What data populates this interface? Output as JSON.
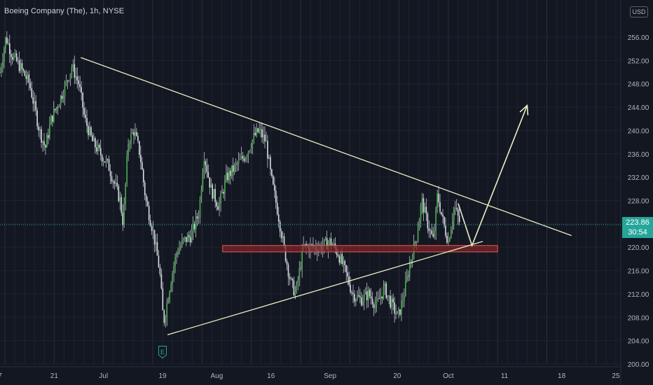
{
  "header": {
    "title": "Boeing Company (The), 1h, NYSE",
    "currency": "USD"
  },
  "current_price": {
    "value": "223.86",
    "countdown": "30:54",
    "y": 223.86
  },
  "earnings_marker": {
    "label": "E",
    "icon": "earnings-e-icon",
    "x": 16.5
  },
  "colors": {
    "background": "#131722",
    "candle_up": "#26a69a",
    "candle_body": "#4caf50",
    "candle_down": "#ef5350",
    "wick": "#d8dce3",
    "annotation": "#e9efc3",
    "zone_fill": "#7a2629",
    "zone_border": "#ef5350",
    "price_line": "#26a69a",
    "axis_text": "#b2b5be"
  },
  "chart_data": {
    "type": "candlestick",
    "title": "Boeing Company (The), 1h, NYSE",
    "ylim": [
      200,
      259
    ],
    "xlim": [
      0,
      63
    ],
    "x_ticks": [
      {
        "label": "7",
        "x": 0
      },
      {
        "label": "21",
        "x": 5.5
      },
      {
        "label": "Jul",
        "x": 10.5
      },
      {
        "label": "19",
        "x": 16.5
      },
      {
        "label": "Aug",
        "x": 22
      },
      {
        "label": "16",
        "x": 27.5
      },
      {
        "label": "Sep",
        "x": 33.5
      },
      {
        "label": "20",
        "x": 40.3
      },
      {
        "label": "Oct",
        "x": 45.5
      },
      {
        "label": "11",
        "x": 51.2
      },
      {
        "label": "18",
        "x": 57
      },
      {
        "label": "25",
        "x": 62.5
      }
    ],
    "y_ticks": [
      200,
      204,
      208,
      212,
      216,
      220,
      224,
      228,
      232,
      236,
      240,
      244,
      248,
      252,
      256
    ],
    "price_path": [
      [
        0,
        250
      ],
      [
        0.6,
        256
      ],
      [
        1.2,
        253
      ],
      [
        2,
        251
      ],
      [
        3,
        248
      ],
      [
        4,
        240
      ],
      [
        4.6,
        237
      ],
      [
        5.2,
        242
      ],
      [
        6,
        245
      ],
      [
        6.7,
        248
      ],
      [
        7.3,
        251
      ],
      [
        8,
        248
      ],
      [
        8.6,
        242
      ],
      [
        9.4,
        238
      ],
      [
        10.2,
        236
      ],
      [
        11,
        234
      ],
      [
        11.6,
        231
      ],
      [
        12.2,
        228
      ],
      [
        12.5,
        224
      ],
      [
        13,
        238
      ],
      [
        13.6,
        240
      ],
      [
        14.2,
        236
      ],
      [
        14.8,
        228
      ],
      [
        15.5,
        223
      ],
      [
        16.2,
        216
      ],
      [
        16.6,
        207
      ],
      [
        17.3,
        214
      ],
      [
        17.9,
        219
      ],
      [
        18.6,
        221
      ],
      [
        19.4,
        222
      ],
      [
        20.2,
        226
      ],
      [
        20.7,
        236
      ],
      [
        21.4,
        230
      ],
      [
        22.2,
        227
      ],
      [
        23,
        232
      ],
      [
        24,
        234
      ],
      [
        25,
        236
      ],
      [
        25.8,
        239
      ],
      [
        26.3,
        240
      ],
      [
        27,
        238
      ],
      [
        27.5,
        232
      ],
      [
        28.2,
        226
      ],
      [
        28.8,
        220
      ],
      [
        29.5,
        214
      ],
      [
        30,
        212
      ],
      [
        30.8,
        220
      ],
      [
        31.6,
        220
      ],
      [
        32.5,
        220
      ],
      [
        33.5,
        221
      ],
      [
        34.3,
        219
      ],
      [
        35,
        216
      ],
      [
        35.8,
        212
      ],
      [
        36.6,
        211
      ],
      [
        37.4,
        212
      ],
      [
        38.2,
        210
      ],
      [
        39,
        213
      ],
      [
        39.8,
        210
      ],
      [
        40.4,
        208
      ],
      [
        41,
        212
      ],
      [
        41.7,
        218
      ],
      [
        42.3,
        222
      ],
      [
        42.8,
        228
      ],
      [
        43.4,
        224
      ],
      [
        44,
        221
      ],
      [
        44.4,
        229
      ],
      [
        45,
        224
      ],
      [
        45.5,
        221
      ],
      [
        46.1,
        227
      ],
      [
        46.7,
        224
      ]
    ],
    "annotations": {
      "upper_trendline": [
        [
          8.2,
          252.5
        ],
        [
          58,
          222
        ]
      ],
      "lower_trendline": [
        [
          17,
          205
        ],
        [
          49,
          221
        ]
      ],
      "support_zone": {
        "x": [
          22.6,
          50.5
        ],
        "y": [
          219.2,
          220.3
        ]
      },
      "projection_path": [
        [
          46.5,
          227.5
        ],
        [
          47.9,
          220.3
        ],
        [
          53.5,
          244.3
        ]
      ]
    },
    "earnings_x": 16.5
  }
}
